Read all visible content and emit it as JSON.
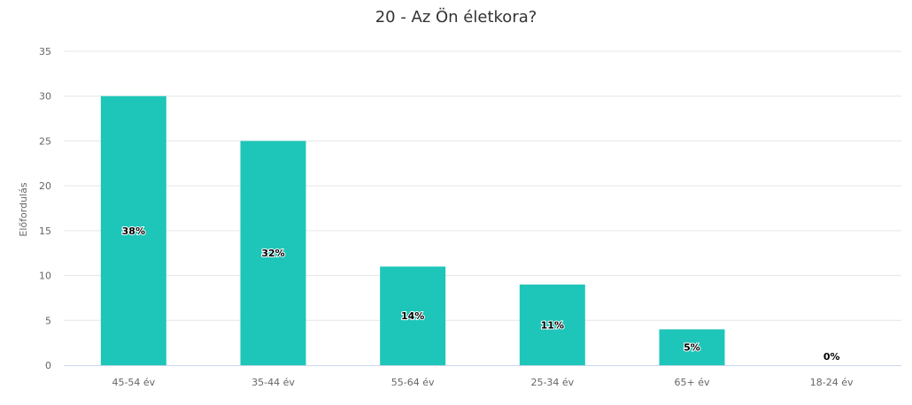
{
  "chart_data": {
    "type": "bar",
    "title": "20 - Az Ön életkora?",
    "xlabel": "",
    "ylabel": "Előfordulás",
    "categories": [
      "45-54 év",
      "35-44 év",
      "55-64 év",
      "25-34 év",
      "65+ év",
      "18-24 év"
    ],
    "values": [
      30,
      25,
      11,
      9,
      4,
      0
    ],
    "data_labels": [
      "38%",
      "32%",
      "14%",
      "11%",
      "5%",
      "0%"
    ],
    "ylim": [
      0,
      35
    ],
    "yticks": [
      0,
      5,
      10,
      15,
      20,
      25,
      30,
      35
    ],
    "grid": true,
    "legend": "none",
    "colors": {
      "bar": "#1ec6b9",
      "grid": "#e6e6e6",
      "axis": "#ccd6eb"
    }
  }
}
